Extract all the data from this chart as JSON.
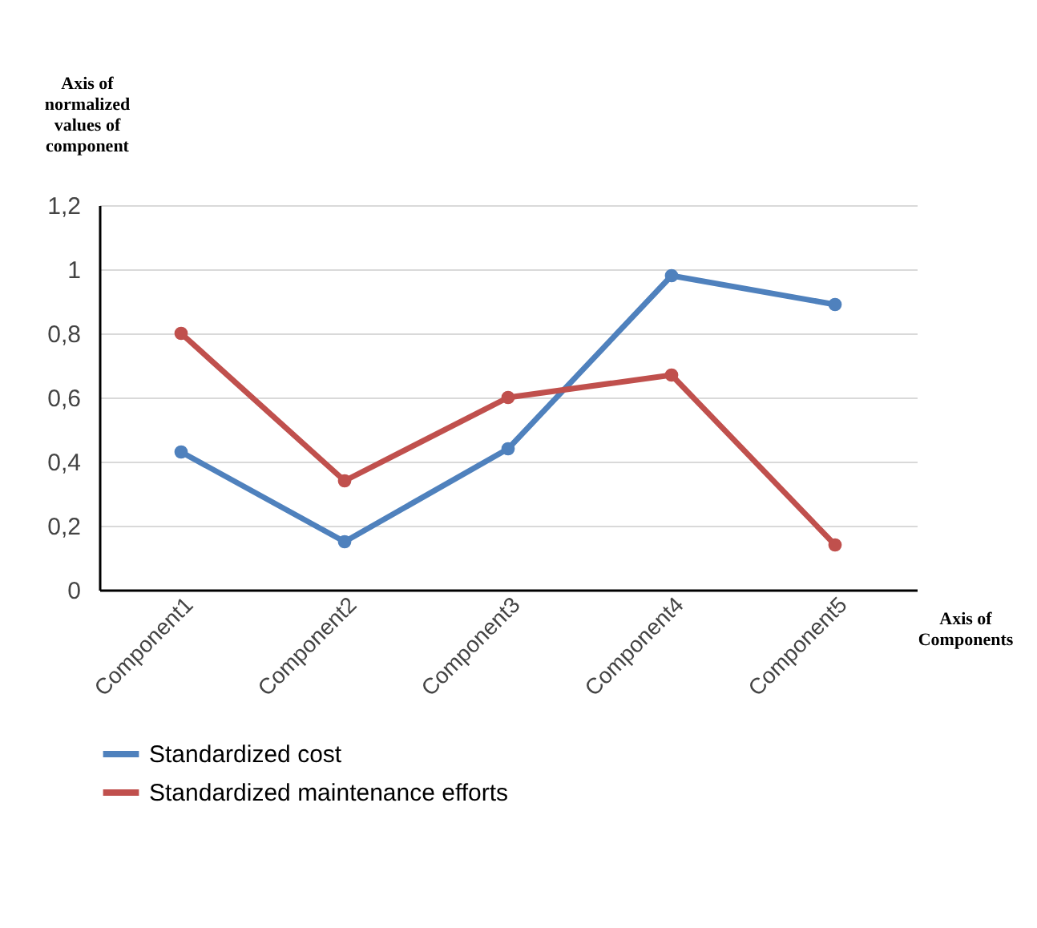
{
  "chart_data": {
    "type": "line",
    "ylabel": "Axis of normalized values of component",
    "xlabel": "Axis of Components",
    "categories": [
      "Component1",
      "Component2",
      "Component3",
      "Component4",
      "Component5"
    ],
    "series": [
      {
        "name": "Standardized cost",
        "color": "#4f81bd",
        "values": [
          0.43,
          0.15,
          0.44,
          0.98,
          0.89
        ]
      },
      {
        "name": "Standardized maintenance efforts",
        "color": "#c0504d",
        "values": [
          0.8,
          0.34,
          0.6,
          0.67,
          0.14
        ]
      }
    ],
    "ylim": [
      0,
      1.2
    ],
    "yticks": [
      0,
      {
        "value": 0.2,
        "label": "0,2"
      },
      {
        "value": 0.4,
        "label": "0,4"
      },
      {
        "value": 0.6,
        "label": "0,6"
      },
      {
        "value": 0.8,
        "label": "0,8"
      },
      1,
      {
        "value": 1.2,
        "label": "1,2"
      }
    ],
    "grid": "y",
    "legend": "bottom",
    "marker": "circle",
    "line_style": "solid"
  }
}
